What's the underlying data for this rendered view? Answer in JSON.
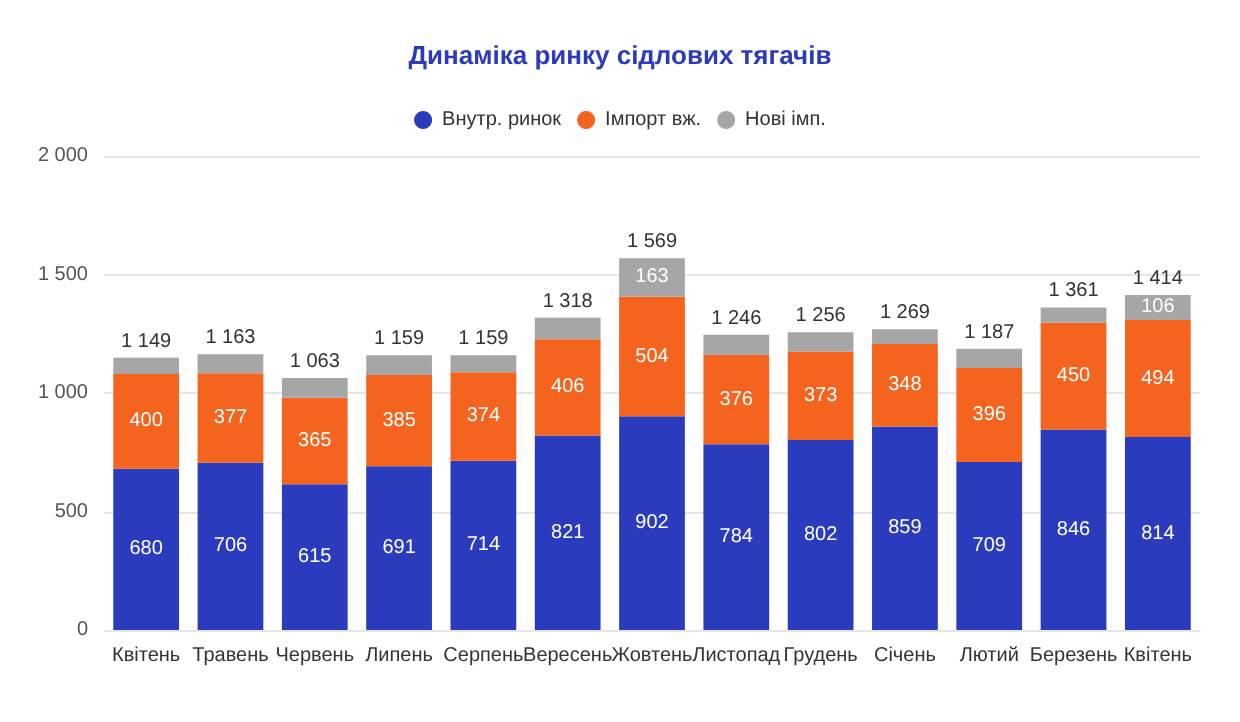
{
  "chart_data": {
    "type": "bar",
    "title": "Динаміка ринку сідлових тягачів",
    "stacked": true,
    "categories": [
      "Квітень",
      "Травень",
      "Червень",
      "Липень",
      "Серпень",
      "Вересень",
      "Жовтень",
      "Листопад",
      "Грудень",
      "Січень",
      "Лютий",
      "Березень",
      "Квітень"
    ],
    "series": [
      {
        "name": "Внутр. ринок",
        "color": "#2b3bbd",
        "values": [
          680,
          706,
          615,
          691,
          714,
          821,
          902,
          784,
          802,
          859,
          709,
          846,
          814
        ],
        "value_labels": [
          "680",
          "706",
          "615",
          "691",
          "714",
          "821",
          "902",
          "784",
          "802",
          "859",
          "709",
          "846",
          "814"
        ]
      },
      {
        "name": "Імпорт вж.",
        "color": "#f5641e",
        "values": [
          400,
          377,
          365,
          385,
          374,
          406,
          504,
          376,
          373,
          348,
          396,
          450,
          494
        ],
        "value_labels": [
          "400",
          "377",
          "365",
          "385",
          "374",
          "406",
          "504",
          "376",
          "373",
          "348",
          "396",
          "450",
          "494"
        ]
      },
      {
        "name": "Нові імп.",
        "color": "#a6a6a6",
        "values": [
          69,
          80,
          83,
          83,
          71,
          91,
          163,
          86,
          81,
          62,
          82,
          65,
          106
        ],
        "value_labels": [
          null,
          null,
          null,
          null,
          null,
          null,
          "163",
          null,
          null,
          null,
          null,
          null,
          "106"
        ]
      }
    ],
    "totals": [
      "1 149",
      "1 163",
      "1 063",
      "1 159",
      "1 159",
      "1 318",
      "1 569",
      "1 246",
      "1 256",
      "1 269",
      "1 187",
      "1 361",
      "1 414"
    ],
    "ylim": [
      0,
      2000
    ],
    "yticks": [
      {
        "value": 0,
        "label": "0"
      },
      {
        "value": 500,
        "label": "500"
      },
      {
        "value": 1000,
        "label": "1 000"
      },
      {
        "value": 1500,
        "label": "1 500"
      },
      {
        "value": 2000,
        "label": "2 000"
      }
    ],
    "grid": "y",
    "legend": "top"
  }
}
